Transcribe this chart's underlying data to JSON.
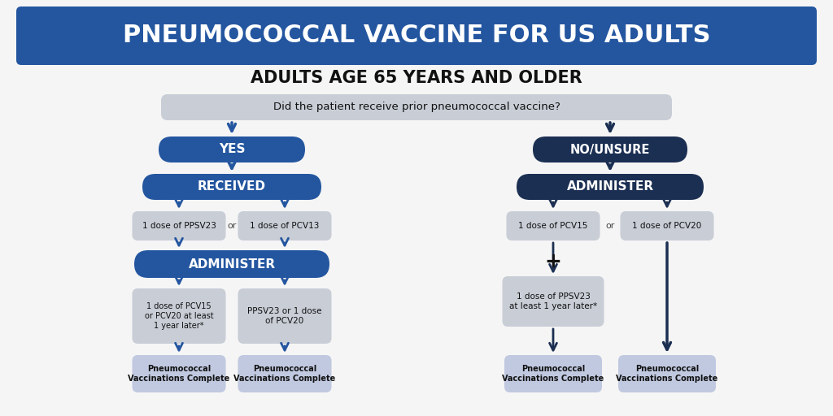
{
  "title": "PNEUMOCOCCAL VACCINE FOR US ADULTS",
  "title_bg": "#2456a0",
  "title_color": "#ffffff",
  "subtitle": "ADULTS AGE 65 YEARS AND OLDER",
  "question": "Did the patient receive prior pneumococcal vaccine?",
  "bg_color": "#f5f5f5",
  "dark_blue": "#1b2f52",
  "medium_blue": "#2456a0",
  "light_gray": "#c8cdd6",
  "lighter_blue": "#c0c9e0",
  "arrow_blue": "#2456a0",
  "arrow_dark": "#1b2f52",
  "text_dark": "#111111"
}
